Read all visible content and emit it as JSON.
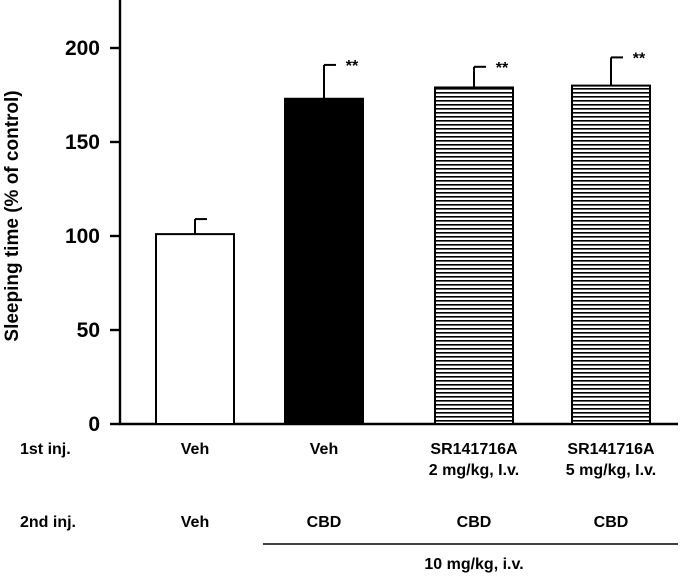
{
  "chart_data": {
    "type": "bar",
    "ylabel": "Sleeping time (% of control)",
    "ylim": [
      0,
      220
    ],
    "yticks": [
      0,
      50,
      100,
      150,
      200
    ],
    "grid": false,
    "categories": [
      "Veh / Veh",
      "Veh / CBD",
      "SR141716A 2 mg/kg / CBD",
      "SR141716A 5 mg/kg / CBD"
    ],
    "values": [
      101,
      173,
      179,
      180
    ],
    "errors": [
      8,
      18,
      11,
      15
    ],
    "significance": [
      "",
      "**",
      "**",
      "**"
    ],
    "fills": [
      "white",
      "black",
      "hatch",
      "hatch"
    ],
    "first_injection_label": "1st inj.",
    "first_injection": [
      [
        "Veh"
      ],
      [
        "Veh"
      ],
      [
        "SR141716A",
        "2 mg/kg, I.v."
      ],
      [
        "SR141716A",
        "5 mg/kg, I.v."
      ]
    ],
    "second_injection_label": "2nd inj.",
    "second_injection": [
      "Veh",
      "CBD",
      "CBD",
      "CBD"
    ],
    "cbd_dose_note": "10 mg/kg, i.v."
  }
}
